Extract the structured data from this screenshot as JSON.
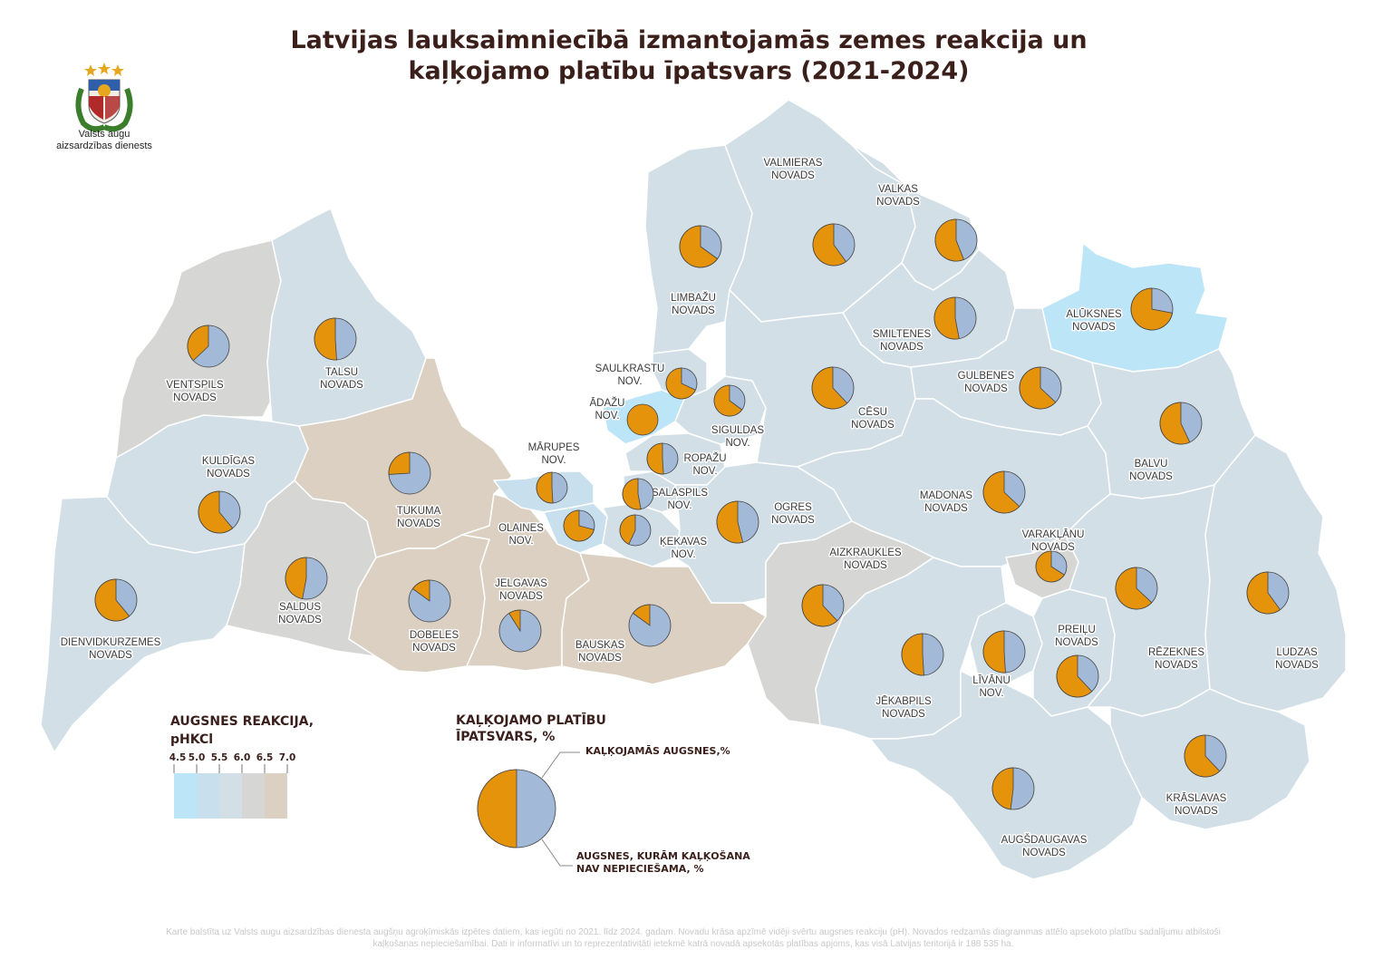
{
  "title": {
    "line1": "Latvijas lauksaimniecībā izmantojamās zemes reakcija un",
    "line2": "kaļķojamo platību īpatsvars (2021-2024)"
  },
  "organization": {
    "line1": "Valsts augu",
    "line2": "aizsardzības dienests"
  },
  "colors": {
    "limed": "#e5930a",
    "not_needed": "#a2b9d7",
    "ph_4_5_5_0": "#bde5f8",
    "ph_5_0_5_5": "#c8dfee",
    "ph_5_5_6_0": "#d2dfe7",
    "ph_6_0_6_5": "#d6d7d5",
    "ph_6_5_7_0": "#dbd0c1"
  },
  "legend_soil": {
    "title_line1": "AUGSNES REAKCIJA,",
    "title_line2": "pHKCl",
    "ticks": [
      "4.5",
      "5.0",
      "5.5",
      "6.0",
      "6.5",
      "7.0"
    ]
  },
  "legend_pie": {
    "title_line1": "KAĻĶOJAMO PLATĪBU",
    "title_line2": "ĪPATSVARS, %",
    "limed_label": "KAĻĶOJAMĀS AUGSNES,%",
    "not_needed_line1": "AUGSNES, KURĀM KAĻĶOŠANA",
    "not_needed_line2": "NAV NEPIECIEŠAMA, %"
  },
  "municipalities": [
    {
      "name_lines": [
        "VENTSPILS",
        "NOVADS"
      ],
      "limed_pct": 37
    },
    {
      "name_lines": [
        "TALSU",
        "NOVADS"
      ],
      "limed_pct": 51
    },
    {
      "name_lines": [
        "KULDĪGAS",
        "NOVADS"
      ],
      "limed_pct": 61
    },
    {
      "name_lines": [
        "DIENVIDKURZEMES",
        "NOVADS"
      ],
      "limed_pct": 61
    },
    {
      "name_lines": [
        "SALDUS",
        "NOVADS"
      ],
      "limed_pct": 47
    },
    {
      "name_lines": [
        "TUKUMA",
        "NOVADS"
      ],
      "limed_pct": 26
    },
    {
      "name_lines": [
        "DOBELES",
        "NOVADS"
      ],
      "limed_pct": 15
    },
    {
      "name_lines": [
        "JELGAVAS",
        "NOVADS"
      ],
      "limed_pct": 9
    },
    {
      "name_lines": [
        "BAUSKAS",
        "NOVADS"
      ],
      "limed_pct": 15
    },
    {
      "name_lines": [
        "MĀRUPES",
        "NOV."
      ],
      "limed_pct": 51
    },
    {
      "name_lines": [
        "OLAINES",
        "NOV."
      ],
      "limed_pct": 71
    },
    {
      "name_lines": [
        "ĶEKAVAS",
        "NOV."
      ],
      "limed_pct": 43
    },
    {
      "name_lines": [
        "SALASPILS",
        "NOV."
      ],
      "limed_pct": 53
    },
    {
      "name_lines": [
        "ROPAŽU",
        "NOV."
      ],
      "limed_pct": 51
    },
    {
      "name_lines": [
        "ĀDAŽU",
        "NOV."
      ],
      "limed_pct": 100
    },
    {
      "name_lines": [
        "SAULKRASTU",
        "NOV."
      ],
      "limed_pct": 68
    },
    {
      "name_lines": [
        "SIGULDAS",
        "NOV."
      ],
      "limed_pct": 65
    },
    {
      "name_lines": [
        "LIMBAŽU",
        "NOVADS"
      ],
      "limed_pct": 65
    },
    {
      "name_lines": [
        "VALMIERAS",
        "NOVADS"
      ],
      "limed_pct": 60
    },
    {
      "name_lines": [
        "VALKAS",
        "NOVADS"
      ],
      "limed_pct": 56
    },
    {
      "name_lines": [
        "SMILTENES",
        "NOVADS"
      ],
      "limed_pct": 53
    },
    {
      "name_lines": [
        "CĒSU",
        "NOVADS"
      ],
      "limed_pct": 62
    },
    {
      "name_lines": [
        "ALŪKSNES",
        "NOVADS"
      ],
      "limed_pct": 72
    },
    {
      "name_lines": [
        "GULBENES",
        "NOVADS"
      ],
      "limed_pct": 63
    },
    {
      "name_lines": [
        "BALVU",
        "NOVADS"
      ],
      "limed_pct": 57
    },
    {
      "name_lines": [
        "OGRES",
        "NOVADS"
      ],
      "limed_pct": 54
    },
    {
      "name_lines": [
        "MADONAS",
        "NOVADS"
      ],
      "limed_pct": 63
    },
    {
      "name_lines": [
        "AIZKRAUKLES",
        "NOVADS"
      ],
      "limed_pct": 62
    },
    {
      "name_lines": [
        "VARAKĻĀNU",
        "NOVADS"
      ],
      "limed_pct": 66
    },
    {
      "name_lines": [
        "RĒZEKNES",
        "NOVADS"
      ],
      "limed_pct": 63
    },
    {
      "name_lines": [
        "LUDZAS",
        "NOVADS"
      ],
      "limed_pct": 60
    },
    {
      "name_lines": [
        "PREIĻU",
        "NOVADS"
      ],
      "limed_pct": 62
    },
    {
      "name_lines": [
        "LĪVĀNU",
        "NOV."
      ],
      "limed_pct": 51
    },
    {
      "name_lines": [
        "JĒKABPILS",
        "NOVADS"
      ],
      "limed_pct": 51
    },
    {
      "name_lines": [
        "KRĀSLAVAS",
        "NOVADS"
      ],
      "limed_pct": 62
    },
    {
      "name_lines": [
        "AUGŠDAUGAVAS",
        "NOVADS"
      ],
      "limed_pct": 48
    }
  ],
  "footnote": {
    "line1": "Karte balstīta uz Valsts augu aizsardzības dienesta augšņu agroķīmiskās izpētes datiem, kas iegūti no 2021. līdz 2024. gadam. Novadu krāsa apzīmē vidēji svērtu augsnes reakciju (pH). Novados redzamās diagrammas attēlo apsekoto platību sadalījumu atbilstoši",
    "line2": "kaļķošanas nepieciešamībai. Dati ir informatīvi un to reprezentativitāti ietekmē katrā novadā apsekotās platības apjoms, kas visā Latvijas teritorijā ir 188 535 ha."
  }
}
